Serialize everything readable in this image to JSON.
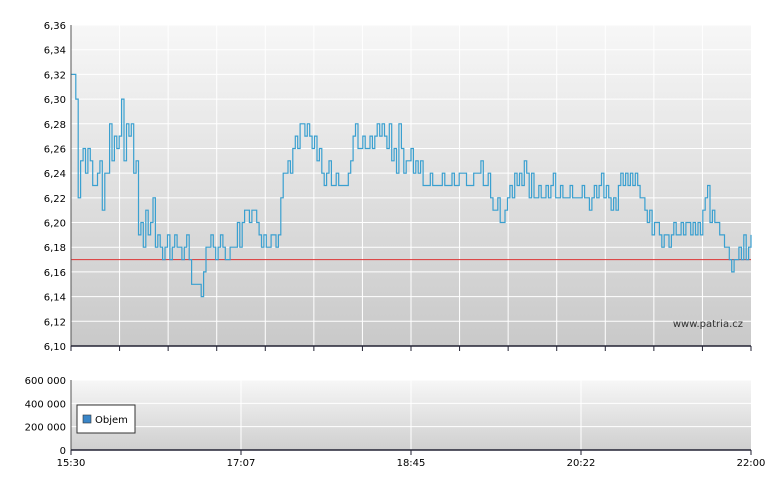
{
  "watermark": "www.patria.cz",
  "chart_data": [
    {
      "type": "line",
      "ylim": [
        6.1,
        6.36
      ],
      "y_ticks": [
        "6,10",
        "6,12",
        "6,14",
        "6,16",
        "6,18",
        "6,20",
        "6,22",
        "6,24",
        "6,26",
        "6,28",
        "6,30",
        "6,32",
        "6,34",
        "6,36"
      ],
      "grid": true,
      "reference_line": {
        "value": 6.17,
        "color": "#dd3333"
      },
      "line_color": "#3aa0d0",
      "x_start": "15:30",
      "x_end": "22:00",
      "series": [
        {
          "values": [
            6.32,
            6.32,
            6.3,
            6.22,
            6.25,
            6.26,
            6.24,
            6.26,
            6.25,
            6.23,
            6.23,
            6.24,
            6.25,
            6.21,
            6.24,
            6.24,
            6.28,
            6.25,
            6.27,
            6.26,
            6.27,
            6.3,
            6.25,
            6.28,
            6.27,
            6.28,
            6.24,
            6.25,
            6.19,
            6.2,
            6.18,
            6.21,
            6.19,
            6.2,
            6.22,
            6.18,
            6.19,
            6.18,
            6.17,
            6.18,
            6.19,
            6.17,
            6.18,
            6.19,
            6.18,
            6.18,
            6.17,
            6.18,
            6.19,
            6.17,
            6.15,
            6.15,
            6.15,
            6.15,
            6.14,
            6.16,
            6.18,
            6.18,
            6.19,
            6.18,
            6.17,
            6.18,
            6.19,
            6.18,
            6.17,
            6.17,
            6.18,
            6.18,
            6.18,
            6.2,
            6.18,
            6.2,
            6.21,
            6.21,
            6.2,
            6.21,
            6.21,
            6.2,
            6.19,
            6.18,
            6.19,
            6.18,
            6.18,
            6.19,
            6.19,
            6.18,
            6.19,
            6.22,
            6.24,
            6.24,
            6.25,
            6.24,
            6.26,
            6.27,
            6.26,
            6.28,
            6.28,
            6.27,
            6.28,
            6.27,
            6.26,
            6.27,
            6.25,
            6.26,
            6.24,
            6.23,
            6.24,
            6.25,
            6.23,
            6.23,
            6.24,
            6.23,
            6.23,
            6.23,
            6.23,
            6.24,
            6.25,
            6.27,
            6.28,
            6.26,
            6.26,
            6.27,
            6.26,
            6.26,
            6.27,
            6.26,
            6.27,
            6.28,
            6.27,
            6.28,
            6.27,
            6.26,
            6.28,
            6.25,
            6.26,
            6.24,
            6.28,
            6.26,
            6.24,
            6.25,
            6.25,
            6.26,
            6.24,
            6.25,
            6.24,
            6.25,
            6.23,
            6.23,
            6.23,
            6.24,
            6.23,
            6.23,
            6.23,
            6.23,
            6.24,
            6.23,
            6.23,
            6.23,
            6.24,
            6.23,
            6.23,
            6.24,
            6.24,
            6.24,
            6.23,
            6.23,
            6.23,
            6.24,
            6.24,
            6.24,
            6.25,
            6.23,
            6.23,
            6.24,
            6.22,
            6.21,
            6.21,
            6.22,
            6.2,
            6.2,
            6.21,
            6.22,
            6.23,
            6.22,
            6.24,
            6.23,
            6.24,
            6.23,
            6.25,
            6.24,
            6.22,
            6.24,
            6.22,
            6.22,
            6.23,
            6.22,
            6.22,
            6.23,
            6.22,
            6.23,
            6.24,
            6.22,
            6.22,
            6.23,
            6.22,
            6.22,
            6.22,
            6.23,
            6.22,
            6.22,
            6.22,
            6.22,
            6.23,
            6.22,
            6.22,
            6.21,
            6.22,
            6.23,
            6.22,
            6.23,
            6.24,
            6.22,
            6.23,
            6.22,
            6.21,
            6.22,
            6.21,
            6.23,
            6.24,
            6.23,
            6.24,
            6.23,
            6.24,
            6.23,
            6.24,
            6.23,
            6.22,
            6.22,
            6.21,
            6.2,
            6.21,
            6.19,
            6.2,
            6.2,
            6.19,
            6.18,
            6.19,
            6.19,
            6.18,
            6.19,
            6.2,
            6.19,
            6.19,
            6.2,
            6.19,
            6.2,
            6.2,
            6.19,
            6.2,
            6.19,
            6.2,
            6.19,
            6.21,
            6.22,
            6.23,
            6.2,
            6.21,
            6.2,
            6.2,
            6.19,
            6.19,
            6.18,
            6.18,
            6.17,
            6.16,
            6.17,
            6.17,
            6.18,
            6.17,
            6.19,
            6.17,
            6.18,
            6.19
          ]
        }
      ]
    },
    {
      "type": "bar",
      "ylim": [
        0,
        600000
      ],
      "y_ticks": [
        "0",
        "200 000",
        "400 000",
        "600 000"
      ],
      "x_ticks": [
        "15:30",
        "17:07",
        "18:45",
        "20:22",
        "22:00"
      ],
      "grid": true,
      "legend": {
        "position": "bottom-left"
      },
      "series": [
        {
          "name": "Objem",
          "color": "#3a86c8",
          "values": []
        }
      ]
    }
  ]
}
